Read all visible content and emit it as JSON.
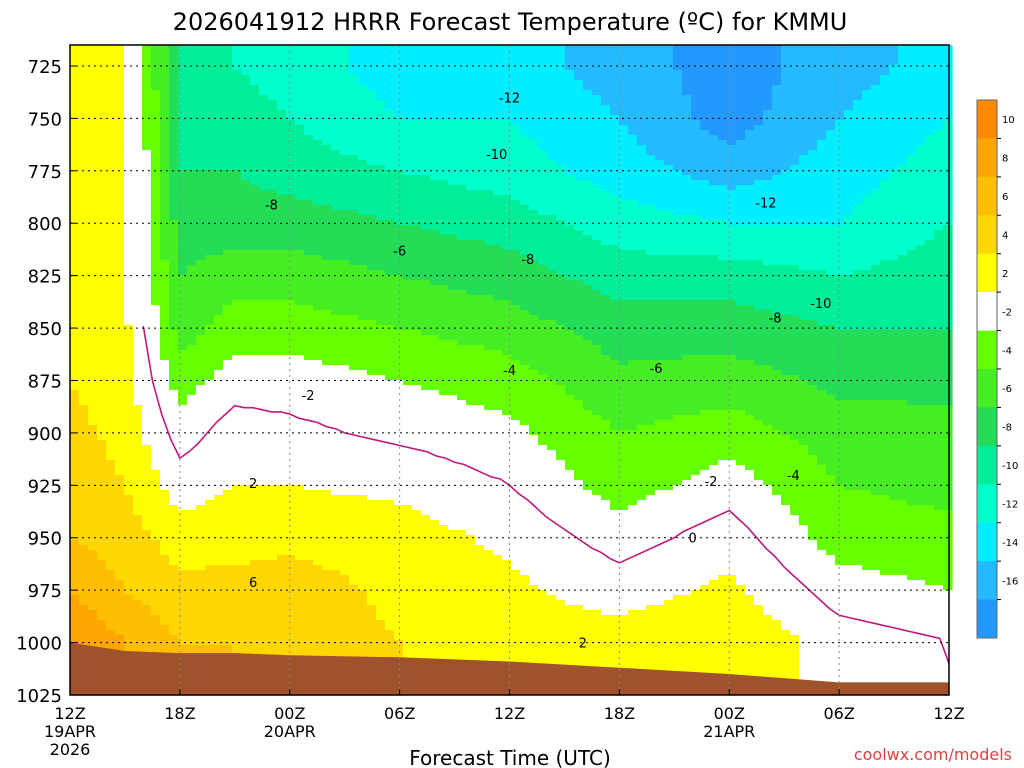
{
  "title": "2026041912 HRRR Forecast Temperature (ºC) for KMMU",
  "xlabel": "Forecast Time (UTC)",
  "credit": "coolwx.com/models",
  "chart_data": {
    "type": "heatmap",
    "title": "2026041912 HRRR Forecast Temperature (ºC) for KMMU",
    "xlabel": "Forecast Time (UTC)",
    "ylabel": "",
    "x_unit": "forecast hour",
    "xlim": [
      0,
      48
    ],
    "ylim": [
      1025,
      715
    ],
    "y_ticks": [
      725,
      750,
      775,
      800,
      825,
      850,
      875,
      900,
      925,
      950,
      975,
      1000,
      1025
    ],
    "x_ticks": [
      {
        "hour": 0,
        "lines": [
          "12Z",
          "19APR",
          "2026"
        ]
      },
      {
        "hour": 6,
        "lines": [
          "18Z"
        ]
      },
      {
        "hour": 12,
        "lines": [
          "00Z",
          "20APR"
        ]
      },
      {
        "hour": 18,
        "lines": [
          "06Z"
        ]
      },
      {
        "hour": 24,
        "lines": [
          "12Z"
        ]
      },
      {
        "hour": 30,
        "lines": [
          "18Z"
        ]
      },
      {
        "hour": 36,
        "lines": [
          "00Z",
          "21APR"
        ]
      },
      {
        "hour": 42,
        "lines": [
          "06Z"
        ]
      },
      {
        "hour": 48,
        "lines": [
          "12Z"
        ]
      }
    ],
    "colorbar": {
      "labels": [
        "10",
        "8",
        "6",
        "4",
        "2",
        "-2",
        "-4",
        "-6",
        "-8",
        "-10",
        "-12",
        "-14",
        "-16"
      ],
      "bins": [
        {
          "lo": 10,
          "hi": 12,
          "color": "#ff8a00"
        },
        {
          "lo": 8,
          "hi": 10,
          "color": "#ffa500"
        },
        {
          "lo": 6,
          "hi": 8,
          "color": "#ffbf00"
        },
        {
          "lo": 4,
          "hi": 6,
          "color": "#ffd700"
        },
        {
          "lo": 2,
          "hi": 4,
          "color": "#ffff00"
        },
        {
          "lo": -2,
          "hi": 2,
          "color": "#ffffff"
        },
        {
          "lo": -4,
          "hi": -2,
          "color": "#66ff00"
        },
        {
          "lo": -6,
          "hi": -4,
          "color": "#44ee22"
        },
        {
          "lo": -8,
          "hi": -6,
          "color": "#22dd55"
        },
        {
          "lo": -10,
          "hi": -8,
          "color": "#00ee99"
        },
        {
          "lo": -12,
          "hi": -10,
          "color": "#00ffcc"
        },
        {
          "lo": -14,
          "hi": -12,
          "color": "#00eeff"
        },
        {
          "lo": -16,
          "hi": -14,
          "color": "#22bbff"
        },
        {
          "lo": -18,
          "hi": -16,
          "color": "#2299ff"
        }
      ]
    },
    "contour_labels": [
      {
        "text": "-12",
        "hour": 24.0,
        "p": 740
      },
      {
        "text": "-10",
        "hour": 23.3,
        "p": 767
      },
      {
        "text": "-8",
        "hour": 11.0,
        "p": 791
      },
      {
        "text": "-6",
        "hour": 18.0,
        "p": 813
      },
      {
        "text": "-8",
        "hour": 25.0,
        "p": 817
      },
      {
        "text": "-12",
        "hour": 38.0,
        "p": 790
      },
      {
        "text": "-10",
        "hour": 41.0,
        "p": 838
      },
      {
        "text": "-8",
        "hour": 38.5,
        "p": 845
      },
      {
        "text": "-6",
        "hour": 32.0,
        "p": 869
      },
      {
        "text": "-4",
        "hour": 24.0,
        "p": 870
      },
      {
        "text": "-2",
        "hour": 13.0,
        "p": 882
      },
      {
        "text": "2",
        "hour": 10.0,
        "p": 924
      },
      {
        "text": "-2",
        "hour": 35.0,
        "p": 923
      },
      {
        "text": "-4",
        "hour": 39.5,
        "p": 920
      },
      {
        "text": "0",
        "hour": 34.0,
        "p": 950
      },
      {
        "text": "6",
        "hour": 10.0,
        "p": 971
      },
      {
        "text": "2",
        "hour": 28.0,
        "p": 1000
      }
    ],
    "surface_pressure_hpa": [
      1000,
      1004,
      1005,
      1005,
      1006,
      1007,
      1009,
      1012,
      1015,
      1019,
      1019
    ],
    "profile_hours": [
      0,
      3,
      6,
      9,
      12,
      18,
      24,
      30,
      36,
      42,
      48
    ],
    "profile_temps": [
      [
        [
          1000,
          10
        ],
        [
          975,
          8
        ],
        [
          950,
          6
        ],
        [
          925,
          5
        ],
        [
          900,
          4.5
        ],
        [
          875,
          4
        ],
        [
          850,
          3.5
        ],
        [
          825,
          3
        ],
        [
          800,
          3
        ],
        [
          775,
          3
        ],
        [
          750,
          3
        ],
        [
          725,
          3
        ]
      ],
      [
        [
          1000,
          8
        ],
        [
          975,
          6
        ],
        [
          950,
          5
        ],
        [
          925,
          4
        ],
        [
          900,
          3.5
        ],
        [
          875,
          3
        ],
        [
          850,
          2.5
        ],
        [
          825,
          2
        ],
        [
          800,
          2
        ],
        [
          775,
          2
        ],
        [
          750,
          2
        ],
        [
          725,
          2
        ]
      ],
      [
        [
          1000,
          6
        ],
        [
          975,
          4.5
        ],
        [
          950,
          3
        ],
        [
          925,
          1
        ],
        [
          900,
          -1
        ],
        [
          875,
          -3
        ],
        [
          850,
          -5
        ],
        [
          825,
          -6
        ],
        [
          800,
          -7
        ],
        [
          775,
          -8
        ],
        [
          750,
          -8.5
        ],
        [
          725,
          -9
        ]
      ],
      [
        [
          1000,
          6
        ],
        [
          975,
          5
        ],
        [
          950,
          3
        ],
        [
          925,
          2
        ],
        [
          900,
          1
        ],
        [
          875,
          -1
        ],
        [
          850,
          -3
        ],
        [
          825,
          -5
        ],
        [
          800,
          -7
        ],
        [
          775,
          -8
        ],
        [
          750,
          -9
        ],
        [
          725,
          -10
        ]
      ],
      [
        [
          1000,
          5
        ],
        [
          975,
          5
        ],
        [
          950,
          3.5
        ],
        [
          925,
          2
        ],
        [
          900,
          0.5
        ],
        [
          875,
          -1
        ],
        [
          850,
          -3
        ],
        [
          825,
          -5
        ],
        [
          800,
          -7
        ],
        [
          775,
          -9
        ],
        [
          750,
          -10
        ],
        [
          725,
          -11
        ]
      ],
      [
        [
          1000,
          4
        ],
        [
          975,
          3.5
        ],
        [
          950,
          3
        ],
        [
          925,
          1.5
        ],
        [
          900,
          -0.5
        ],
        [
          875,
          -2
        ],
        [
          850,
          -4
        ],
        [
          825,
          -6
        ],
        [
          800,
          -8
        ],
        [
          775,
          -10
        ],
        [
          750,
          -12
        ],
        [
          725,
          -13
        ]
      ],
      [
        [
          1000,
          3
        ],
        [
          975,
          2.5
        ],
        [
          950,
          1.5
        ],
        [
          925,
          0
        ],
        [
          900,
          -1.5
        ],
        [
          875,
          -3
        ],
        [
          850,
          -5
        ],
        [
          825,
          -7
        ],
        [
          800,
          -9
        ],
        [
          775,
          -11
        ],
        [
          750,
          -12
        ],
        [
          725,
          -13
        ]
      ],
      [
        [
          1000,
          3
        ],
        [
          975,
          1
        ],
        [
          950,
          -1
        ],
        [
          925,
          -3
        ],
        [
          900,
          -4
        ],
        [
          875,
          -5.5
        ],
        [
          850,
          -7
        ],
        [
          825,
          -9
        ],
        [
          800,
          -11
        ],
        [
          775,
          -13
        ],
        [
          750,
          -14
        ],
        [
          725,
          -15
        ]
      ],
      [
        [
          1000,
          4
        ],
        [
          975,
          2.5
        ],
        [
          950,
          1
        ],
        [
          925,
          -1
        ],
        [
          900,
          -3
        ],
        [
          875,
          -5
        ],
        [
          850,
          -7
        ],
        [
          825,
          -9
        ],
        [
          800,
          -12
        ],
        [
          775,
          -15
        ],
        [
          750,
          -17
        ],
        [
          725,
          -17
        ]
      ],
      [
        [
          1000,
          1
        ],
        [
          975,
          -1
        ],
        [
          950,
          -3
        ],
        [
          925,
          -4
        ],
        [
          900,
          -5
        ],
        [
          875,
          -6.5
        ],
        [
          850,
          -8
        ],
        [
          825,
          -10
        ],
        [
          800,
          -12
        ],
        [
          775,
          -13
        ],
        [
          750,
          -14
        ],
        [
          725,
          -15
        ]
      ],
      [
        [
          1000,
          0
        ],
        [
          975,
          -2
        ],
        [
          950,
          -3.5
        ],
        [
          925,
          -4.5
        ],
        [
          900,
          -5.5
        ],
        [
          875,
          -6.5
        ],
        [
          850,
          -8
        ],
        [
          825,
          -9
        ],
        [
          800,
          -10
        ],
        [
          775,
          -11
        ],
        [
          750,
          -12
        ],
        [
          725,
          -13
        ]
      ]
    ]
  }
}
